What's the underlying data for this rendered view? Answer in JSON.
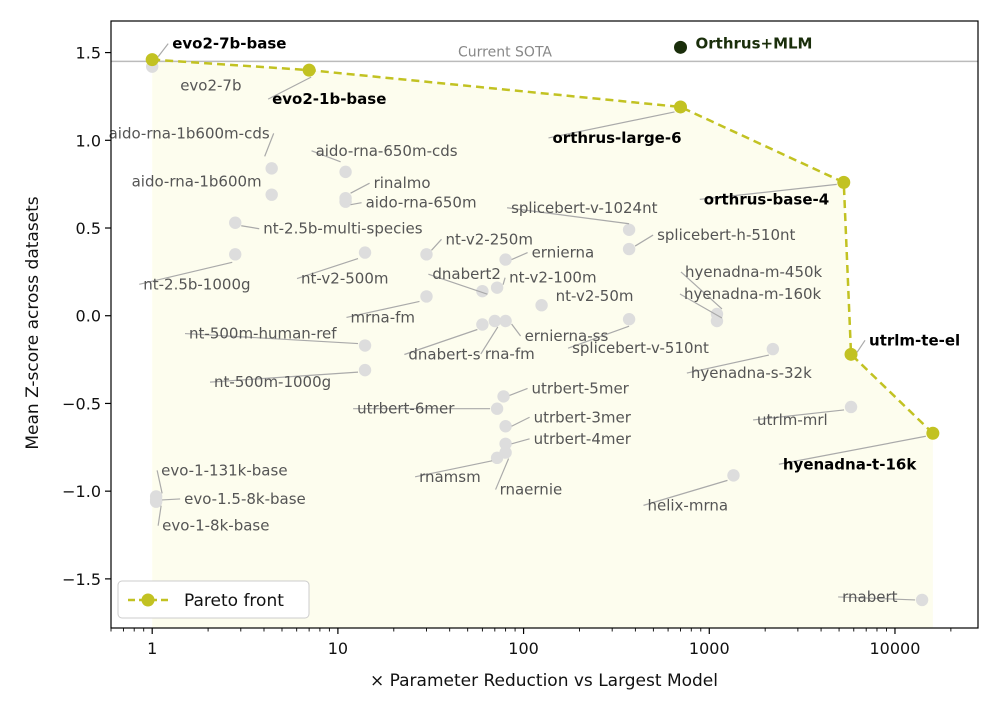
{
  "chart_data": {
    "type": "scatter",
    "xlabel": "× Parameter Reduction vs Largest Model",
    "ylabel": "Mean Z-score across datasets",
    "xscale": "log",
    "xlim": [
      0.6,
      28000
    ],
    "ylim": [
      -1.78,
      1.68
    ],
    "xticks": [
      {
        "v": 1,
        "label": "1"
      },
      {
        "v": 10,
        "label": "10"
      },
      {
        "v": 100,
        "label": "100"
      },
      {
        "v": 1000,
        "label": "1000"
      },
      {
        "v": 10000,
        "label": "10000"
      }
    ],
    "yticks": [
      {
        "v": 1.5,
        "label": "1.5"
      },
      {
        "v": 1.0,
        "label": "1.0"
      },
      {
        "v": 0.5,
        "label": "0.5"
      },
      {
        "v": 0.0,
        "label": "0.0"
      },
      {
        "v": -0.5,
        "label": "−0.5"
      },
      {
        "v": -1.0,
        "label": "−1.0"
      },
      {
        "v": -1.5,
        "label": "−1.5"
      }
    ],
    "grid": false,
    "legend": {
      "position": "bottom-left",
      "label": "Pareto front"
    },
    "reference_line": {
      "y": 1.45,
      "label": "Current SOTA"
    },
    "colors": {
      "pareto": "#c2c222",
      "pareto_fill": "#fdfdee",
      "others": "#dddddd",
      "highlight": "#1a2e0b",
      "sota_line": "#bbbbbb"
    },
    "highlight": {
      "name": "Orthrus+MLM",
      "x": 700,
      "y": 1.53
    },
    "pareto": [
      {
        "name": "evo2-7b-base",
        "x": 1,
        "y": 1.46
      },
      {
        "name": "evo2-1b-base",
        "x": 7,
        "y": 1.4
      },
      {
        "name": "orthrus-large-6",
        "x": 700,
        "y": 1.19
      },
      {
        "name": "orthrus-base-4",
        "x": 5300,
        "y": 0.76
      },
      {
        "name": "utrlm-te-el",
        "x": 5800,
        "y": -0.22
      },
      {
        "name": "hyenadna-t-16k",
        "x": 16000,
        "y": -0.67
      }
    ],
    "points": [
      {
        "name": "evo2-7b",
        "x": 1,
        "y": 1.42
      },
      {
        "name": "aido-rna-1b600m-cds",
        "x": 4.4,
        "y": 0.84
      },
      {
        "name": "aido-rna-1b600m",
        "x": 4.4,
        "y": 0.69
      },
      {
        "name": "aido-rna-650m-cds",
        "x": 11,
        "y": 0.82
      },
      {
        "name": "rinalmo",
        "x": 11,
        "y": 0.67
      },
      {
        "name": "aido-rna-650m",
        "x": 11,
        "y": 0.65
      },
      {
        "name": "nt-2.5b-multi-species",
        "x": 2.8,
        "y": 0.53
      },
      {
        "name": "nt-2.5b-1000g",
        "x": 2.8,
        "y": 0.35
      },
      {
        "name": "nt-v2-500m",
        "x": 14,
        "y": 0.36
      },
      {
        "name": "nt-v2-250m",
        "x": 30,
        "y": 0.35
      },
      {
        "name": "dnabert2",
        "x": 60,
        "y": 0.14
      },
      {
        "name": "mrna-fm",
        "x": 30,
        "y": 0.11
      },
      {
        "name": "ernierna",
        "x": 80,
        "y": 0.32
      },
      {
        "name": "nt-v2-100m",
        "x": 72,
        "y": 0.16
      },
      {
        "name": "nt-v2-50m",
        "x": 125,
        "y": 0.06
      },
      {
        "name": "splicebert-v-1024nt",
        "x": 370,
        "y": 0.49
      },
      {
        "name": "splicebert-h-510nt",
        "x": 370,
        "y": 0.38
      },
      {
        "name": "splicebert-v-510nt",
        "x": 370,
        "y": -0.02
      },
      {
        "name": "dnabert-s",
        "x": 60,
        "y": -0.05
      },
      {
        "name": "rna-fm",
        "x": 70,
        "y": -0.03
      },
      {
        "name": "ernierna-ss",
        "x": 80,
        "y": -0.03
      },
      {
        "name": "nt-500m-human-ref",
        "x": 14,
        "y": -0.17
      },
      {
        "name": "nt-500m-1000g",
        "x": 14,
        "y": -0.31
      },
      {
        "name": "hyenadna-m-450k",
        "x": 1100,
        "y": 0.01
      },
      {
        "name": "hyenadna-m-160k",
        "x": 1100,
        "y": -0.03
      },
      {
        "name": "hyenadna-s-32k",
        "x": 2200,
        "y": -0.19
      },
      {
        "name": "utrbert-5mer",
        "x": 78,
        "y": -0.46
      },
      {
        "name": "utrbert-6mer",
        "x": 72,
        "y": -0.53
      },
      {
        "name": "utrbert-3mer",
        "x": 80,
        "y": -0.63
      },
      {
        "name": "utrbert-4mer",
        "x": 80,
        "y": -0.73
      },
      {
        "name": "rnamsm",
        "x": 72,
        "y": -0.81
      },
      {
        "name": "rnaernie",
        "x": 80,
        "y": -0.78
      },
      {
        "name": "utrlm-mrl",
        "x": 5800,
        "y": -0.52
      },
      {
        "name": "helix-mrna",
        "x": 1350,
        "y": -0.91
      },
      {
        "name": "evo-1-131k-base",
        "x": 1.05,
        "y": -1.03
      },
      {
        "name": "evo-1.5-8k-base",
        "x": 1.05,
        "y": -1.05
      },
      {
        "name": "evo-1-8k-base",
        "x": 1.05,
        "y": -1.06
      },
      {
        "name": "rnabert",
        "x": 14000,
        "y": -1.62
      }
    ]
  }
}
